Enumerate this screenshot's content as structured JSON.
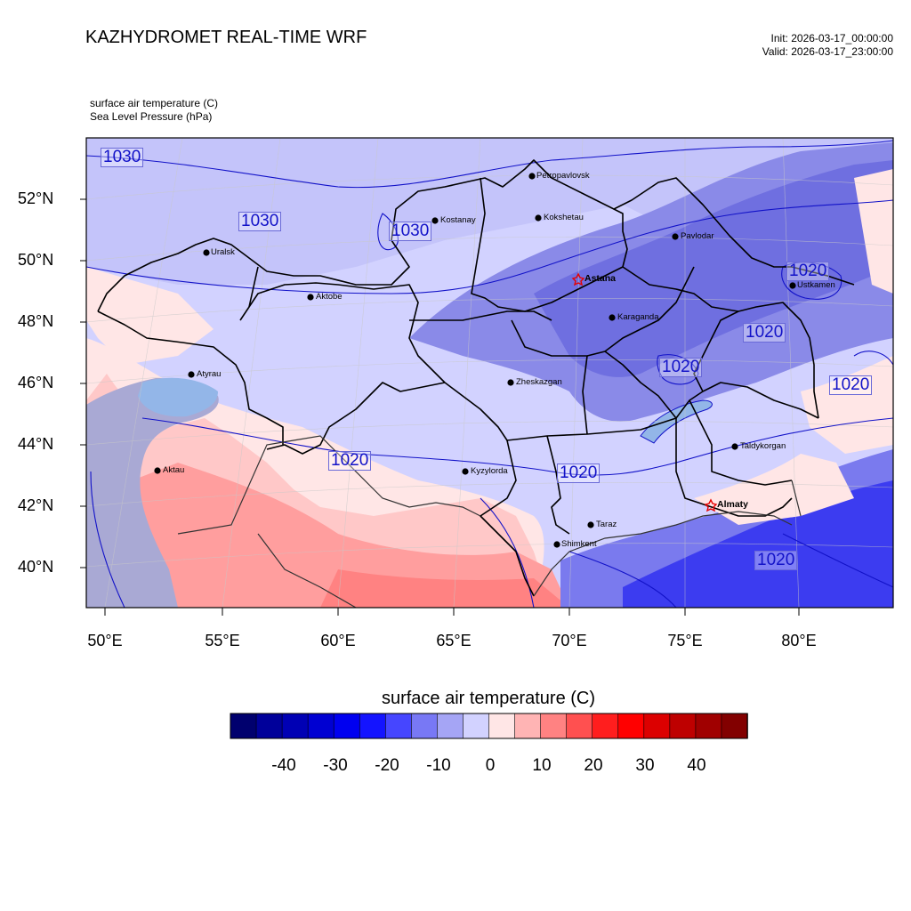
{
  "header": {
    "title": "KAZHYDROMET REAL-TIME WRF",
    "init": "Init: 2026-03-17_00:00:00",
    "valid": "Valid: 2026-03-17_23:00:00",
    "variable_1": "surface air temperature   (C)",
    "variable_2": "Sea Level Pressure   (hPa)"
  },
  "map": {
    "lat_labels": [
      "52°N",
      "50°N",
      "48°N",
      "46°N",
      "44°N",
      "42°N",
      "40°N"
    ],
    "lon_labels": [
      "50°E",
      "55°E",
      "60°E",
      "65°E",
      "70°E",
      "75°E",
      "80°E"
    ],
    "isobar_labels": [
      "1030",
      "1030",
      "1030",
      "1020",
      "1020",
      "1020",
      "1020",
      "1020",
      "1020",
      "1020"
    ],
    "cities": [
      {
        "name": "Petropavlovsk",
        "capital": false
      },
      {
        "name": "Kostanay",
        "capital": false
      },
      {
        "name": "Kokshetau",
        "capital": false
      },
      {
        "name": "Pavlodar",
        "capital": false
      },
      {
        "name": "Uralsk",
        "capital": false
      },
      {
        "name": "Astana",
        "capital": true
      },
      {
        "name": "Ustkamen",
        "capital": false
      },
      {
        "name": "Aktobe",
        "capital": false
      },
      {
        "name": "Karaganda",
        "capital": false
      },
      {
        "name": "Atyrau",
        "capital": false
      },
      {
        "name": "Zheskazgan",
        "capital": false
      },
      {
        "name": "Taldykorgan",
        "capital": false
      },
      {
        "name": "Aktau",
        "capital": false
      },
      {
        "name": "Kyzylorda",
        "capital": false
      },
      {
        "name": "Almaty",
        "capital": true
      },
      {
        "name": "Taraz",
        "capital": false
      },
      {
        "name": "Shimkent",
        "capital": false
      }
    ]
  },
  "colorbar": {
    "title": "surface air temperature  (C)",
    "ticks": [
      "-40",
      "-30",
      "-20",
      "-10",
      "0",
      "10",
      "20",
      "30",
      "40"
    ],
    "colors": [
      "#00006e",
      "#00009a",
      "#0000b4",
      "#0000d2",
      "#0000f0",
      "#1414ff",
      "#4646ff",
      "#7878f5",
      "#a5a5f5",
      "#d2d2ff",
      "#ffe6e6",
      "#ffb4b4",
      "#ff8282",
      "#ff5050",
      "#ff1e1e",
      "#ff0000",
      "#dc0000",
      "#be0000",
      "#a00000",
      "#820000"
    ]
  },
  "colors": {
    "isobar": "#1212c8",
    "border": "#000000",
    "capital_star": "#e60000"
  }
}
